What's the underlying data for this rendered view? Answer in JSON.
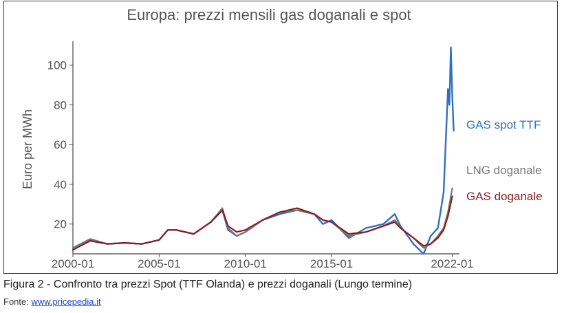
{
  "chart_data": {
    "type": "line",
    "title": "Europa: prezzi mensili gas doganali e spot",
    "xlabel": "",
    "ylabel": "Euro per MWh",
    "x_ticks": [
      "2000-01",
      "2005-01",
      "2010-01",
      "2015-01",
      "2022-01"
    ],
    "y_ticks": [
      20,
      40,
      60,
      80,
      100
    ],
    "ylim": [
      5,
      112
    ],
    "xlim": [
      "2000-01",
      "2022-06"
    ],
    "grid": false,
    "legend": "inline labels at the right end of each line",
    "series": [
      {
        "name": "GAS spot TTF",
        "color": "#2f6fc0",
        "points": [
          [
            "2000-01",
            7
          ],
          [
            "2001-01",
            12
          ],
          [
            "2002-01",
            10
          ],
          [
            "2003-01",
            10.5
          ],
          [
            "2004-01",
            10
          ],
          [
            "2005-01",
            12
          ],
          [
            "2005-07",
            17
          ],
          [
            "2006-01",
            17
          ],
          [
            "2007-01",
            15
          ],
          [
            "2008-01",
            21
          ],
          [
            "2008-09",
            27
          ],
          [
            "2009-01",
            17
          ],
          [
            "2009-07",
            14
          ],
          [
            "2010-01",
            16
          ],
          [
            "2011-01",
            22
          ],
          [
            "2012-01",
            25
          ],
          [
            "2013-01",
            27
          ],
          [
            "2014-01",
            25
          ],
          [
            "2014-07",
            20
          ],
          [
            "2015-01",
            22
          ],
          [
            "2016-01",
            13
          ],
          [
            "2017-01",
            18
          ],
          [
            "2018-01",
            20
          ],
          [
            "2018-09",
            25
          ],
          [
            "2019-01",
            19
          ],
          [
            "2019-10",
            10
          ],
          [
            "2020-05",
            5
          ],
          [
            "2020-10",
            14
          ],
          [
            "2021-03",
            18
          ],
          [
            "2021-07",
            36
          ],
          [
            "2021-10",
            88
          ],
          [
            "2021-11",
            80
          ],
          [
            "2021-12",
            109
          ],
          [
            "2022-01",
            84
          ],
          [
            "2022-02",
            67
          ]
        ]
      },
      {
        "name": "LNG doganale",
        "color": "#777777",
        "points": [
          [
            "2000-01",
            8
          ],
          [
            "2001-01",
            12.5
          ],
          [
            "2002-01",
            10
          ],
          [
            "2003-01",
            10.5
          ],
          [
            "2004-01",
            10
          ],
          [
            "2005-01",
            12
          ],
          [
            "2005-07",
            17
          ],
          [
            "2006-01",
            17
          ],
          [
            "2007-01",
            15
          ],
          [
            "2008-01",
            21
          ],
          [
            "2008-09",
            28
          ],
          [
            "2009-01",
            18
          ],
          [
            "2009-07",
            14
          ],
          [
            "2010-01",
            16
          ],
          [
            "2011-01",
            22
          ],
          [
            "2012-01",
            26
          ],
          [
            "2013-01",
            27
          ],
          [
            "2014-01",
            25
          ],
          [
            "2014-07",
            22
          ],
          [
            "2015-01",
            21
          ],
          [
            "2016-01",
            14
          ],
          [
            "2017-01",
            16
          ],
          [
            "2018-01",
            19
          ],
          [
            "2018-09",
            22
          ],
          [
            "2019-01",
            18
          ],
          [
            "2019-10",
            13
          ],
          [
            "2020-05",
            8
          ],
          [
            "2020-10",
            10
          ],
          [
            "2021-03",
            14
          ],
          [
            "2021-07",
            18
          ],
          [
            "2021-10",
            26
          ],
          [
            "2022-01",
            38
          ]
        ]
      },
      {
        "name": "GAS doganale",
        "color": "#8b1e1e",
        "points": [
          [
            "2000-01",
            7
          ],
          [
            "2001-01",
            11.5
          ],
          [
            "2002-01",
            10
          ],
          [
            "2003-01",
            10.5
          ],
          [
            "2004-01",
            10
          ],
          [
            "2005-01",
            12
          ],
          [
            "2005-07",
            17
          ],
          [
            "2006-01",
            17
          ],
          [
            "2007-01",
            15
          ],
          [
            "2008-01",
            21
          ],
          [
            "2008-09",
            27
          ],
          [
            "2009-01",
            19
          ],
          [
            "2009-07",
            16
          ],
          [
            "2010-01",
            17
          ],
          [
            "2011-01",
            22
          ],
          [
            "2012-01",
            26
          ],
          [
            "2013-01",
            28
          ],
          [
            "2014-01",
            25
          ],
          [
            "2014-07",
            22
          ],
          [
            "2015-01",
            21
          ],
          [
            "2016-01",
            15
          ],
          [
            "2017-01",
            16
          ],
          [
            "2018-01",
            19
          ],
          [
            "2018-09",
            21
          ],
          [
            "2019-01",
            18
          ],
          [
            "2019-10",
            13
          ],
          [
            "2020-05",
            9
          ],
          [
            "2020-10",
            10
          ],
          [
            "2021-03",
            13
          ],
          [
            "2021-07",
            17
          ],
          [
            "2021-10",
            24
          ],
          [
            "2022-01",
            34
          ]
        ]
      }
    ]
  },
  "caption": "Figura 2 - Confronto tra prezzi Spot (TTF Olanda) e prezzi doganali (Lungo termine)",
  "source": {
    "prefix": "Fonte: ",
    "link_text": "www.pricepedia.it"
  }
}
